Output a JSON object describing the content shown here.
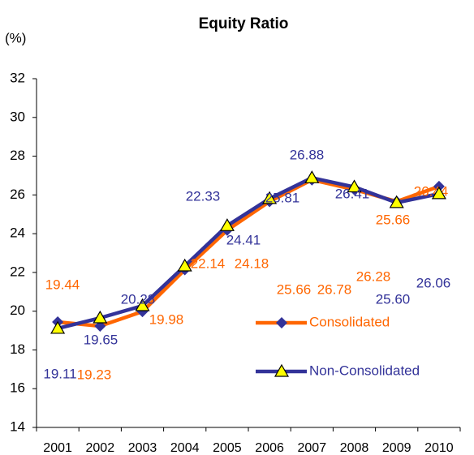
{
  "chart_data": {
    "type": "line",
    "title": "Equity Ratio",
    "y_label": "(%)",
    "categories": [
      "2001",
      "2002",
      "2003",
      "2004",
      "2005",
      "2006",
      "2007",
      "2008",
      "2009",
      "2010"
    ],
    "series": [
      {
        "name": "Consolidated",
        "color": "#ff6600",
        "marker_color": "#333399",
        "values": [
          19.44,
          19.23,
          19.98,
          22.14,
          24.18,
          25.66,
          26.78,
          26.28,
          25.66,
          26.44
        ],
        "value_labels": [
          "19.44",
          "19.23",
          "19.98",
          "22.14",
          "24.18",
          "25.66",
          "26.78",
          "26.28",
          "25.66",
          "26.44"
        ]
      },
      {
        "name": "Non-Consolidated",
        "color": "#333399",
        "marker_color": "#ffff00",
        "values": [
          19.11,
          19.65,
          20.28,
          22.33,
          24.41,
          25.81,
          26.88,
          26.41,
          25.6,
          26.06
        ],
        "value_labels": [
          "19.11",
          "19.65",
          "20.28",
          "22.33",
          "24.41",
          "25.81",
          "26.88",
          "26.41",
          "25.60",
          "26.06"
        ]
      }
    ],
    "ylim": [
      14,
      32
    ],
    "yticks": [
      14,
      16,
      18,
      20,
      22,
      24,
      26,
      28,
      30,
      32
    ],
    "grid": false
  }
}
